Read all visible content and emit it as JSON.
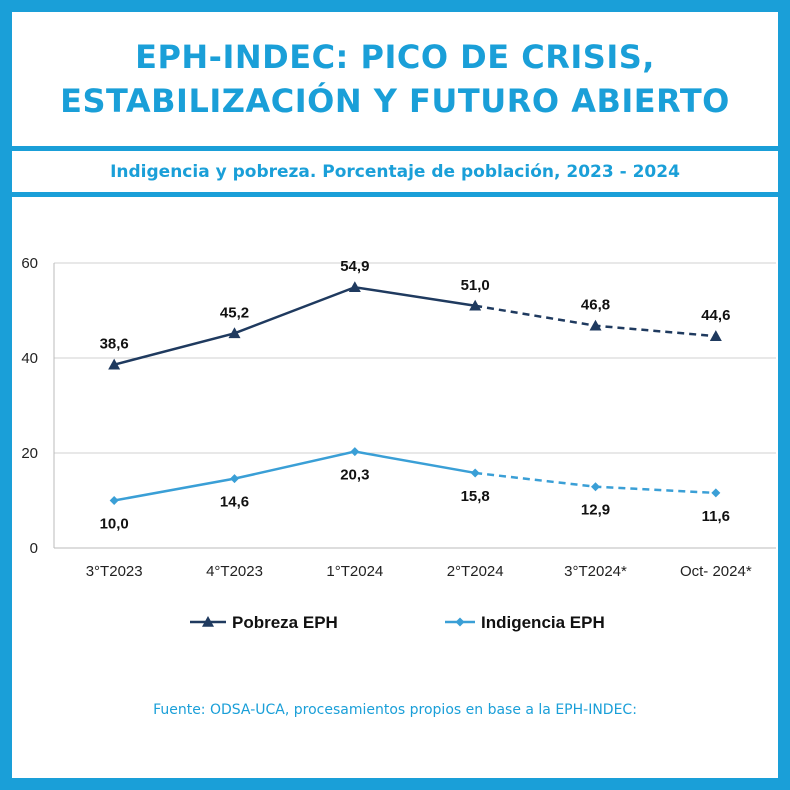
{
  "header": {
    "title_line1": "EPH-INDEC: PICO DE CRISIS,",
    "title_line2": "ESTABILIZACIÓN Y FUTURO ABIERTO",
    "subtitle": "Indigencia y pobreza. Porcentaje de población, 2023 - 2024"
  },
  "footer": {
    "source": "Fuente: ODSA-UCA, procesamientos propios en base a la EPH-INDEC:"
  },
  "colors": {
    "accent": "#1a9fd8",
    "pobreza": "#1f3a5f",
    "indigencia": "#3a9fd6",
    "grid": "#d0d0d0"
  },
  "chart_data": {
    "type": "line",
    "x": [
      "3°T2023",
      "4°T2023",
      "1°T2024",
      "2°T2024",
      "3°T2024*",
      "Oct- 2024*"
    ],
    "ylim": [
      0,
      60
    ],
    "yticks": [
      0,
      20,
      40,
      60
    ],
    "grid": true,
    "legend_position": "bottom",
    "dashed_from_index": 3,
    "series": [
      {
        "name": "Pobreza EPH",
        "values": [
          38.6,
          45.2,
          54.9,
          51.0,
          46.8,
          44.6
        ],
        "labels": [
          "38,6",
          "45,2",
          "54,9",
          "51,0",
          "46,8",
          "44,6"
        ],
        "marker": "triangle",
        "color": "#1f3a5f",
        "label_position": "above"
      },
      {
        "name": "Indigencia EPH",
        "values": [
          10.0,
          14.6,
          20.3,
          15.8,
          12.9,
          11.6
        ],
        "labels": [
          "10,0",
          "14,6",
          "20,3",
          "15,8",
          "12,9",
          "11,6"
        ],
        "marker": "diamond",
        "color": "#3a9fd6",
        "label_position": "below"
      }
    ]
  }
}
